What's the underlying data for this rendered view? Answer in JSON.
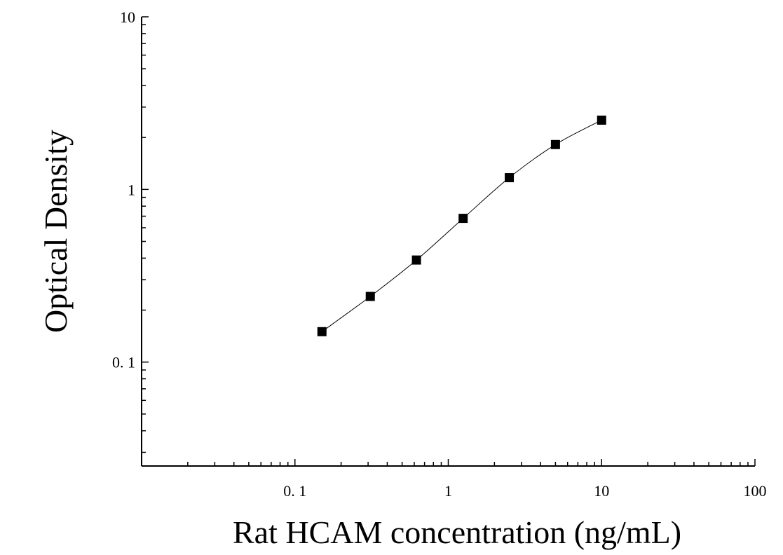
{
  "chart_data": {
    "type": "scatter",
    "xlabel": "Rat HCAM concentration (ng/mL)",
    "ylabel": "Optical Density",
    "x_scale": "log",
    "y_scale": "log",
    "xlim": [
      0.01,
      100
    ],
    "ylim": [
      0.025,
      10
    ],
    "x_tick_labels": [
      {
        "value": 0.1,
        "label": "0. 1"
      },
      {
        "value": 1,
        "label": "1"
      },
      {
        "value": 10,
        "label": "10"
      },
      {
        "value": 100,
        "label": "100"
      }
    ],
    "y_tick_labels": [
      {
        "value": 10,
        "label": "10"
      },
      {
        "value": 1,
        "label": "1"
      },
      {
        "value": 0.1,
        "label": "0. 1"
      }
    ],
    "grid": false,
    "series": [
      {
        "marker": "square",
        "color": "#000000",
        "x": [
          0.15,
          0.31,
          0.62,
          1.25,
          2.5,
          5,
          10
        ],
        "y": [
          0.15,
          0.24,
          0.39,
          0.68,
          1.17,
          1.82,
          2.52
        ]
      }
    ],
    "fit_curve": {
      "type": "smooth",
      "color": "#000000"
    }
  }
}
